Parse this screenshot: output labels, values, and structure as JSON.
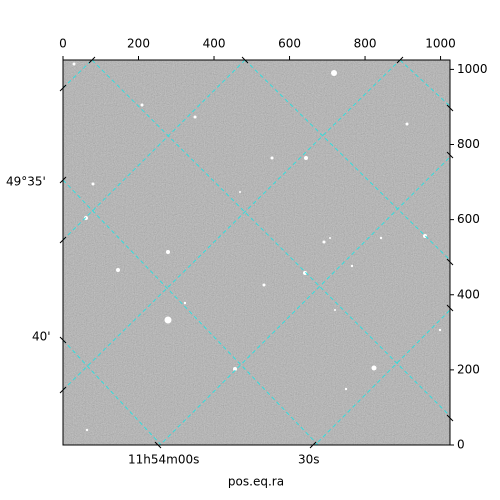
{
  "chart_data": {
    "type": "image",
    "xlabel": "pos.eq.ra",
    "xlim": [
      0,
      1025
    ],
    "ylim": [
      0,
      1025
    ],
    "xticks": [
      0,
      200,
      400,
      600,
      800,
      1000
    ],
    "yticks": [
      0,
      200,
      400,
      600,
      800,
      1000
    ],
    "ra_labels": [
      "11h54m00s",
      "30s"
    ],
    "dec_labels": [
      "49°35'",
      "40'"
    ]
  }
}
